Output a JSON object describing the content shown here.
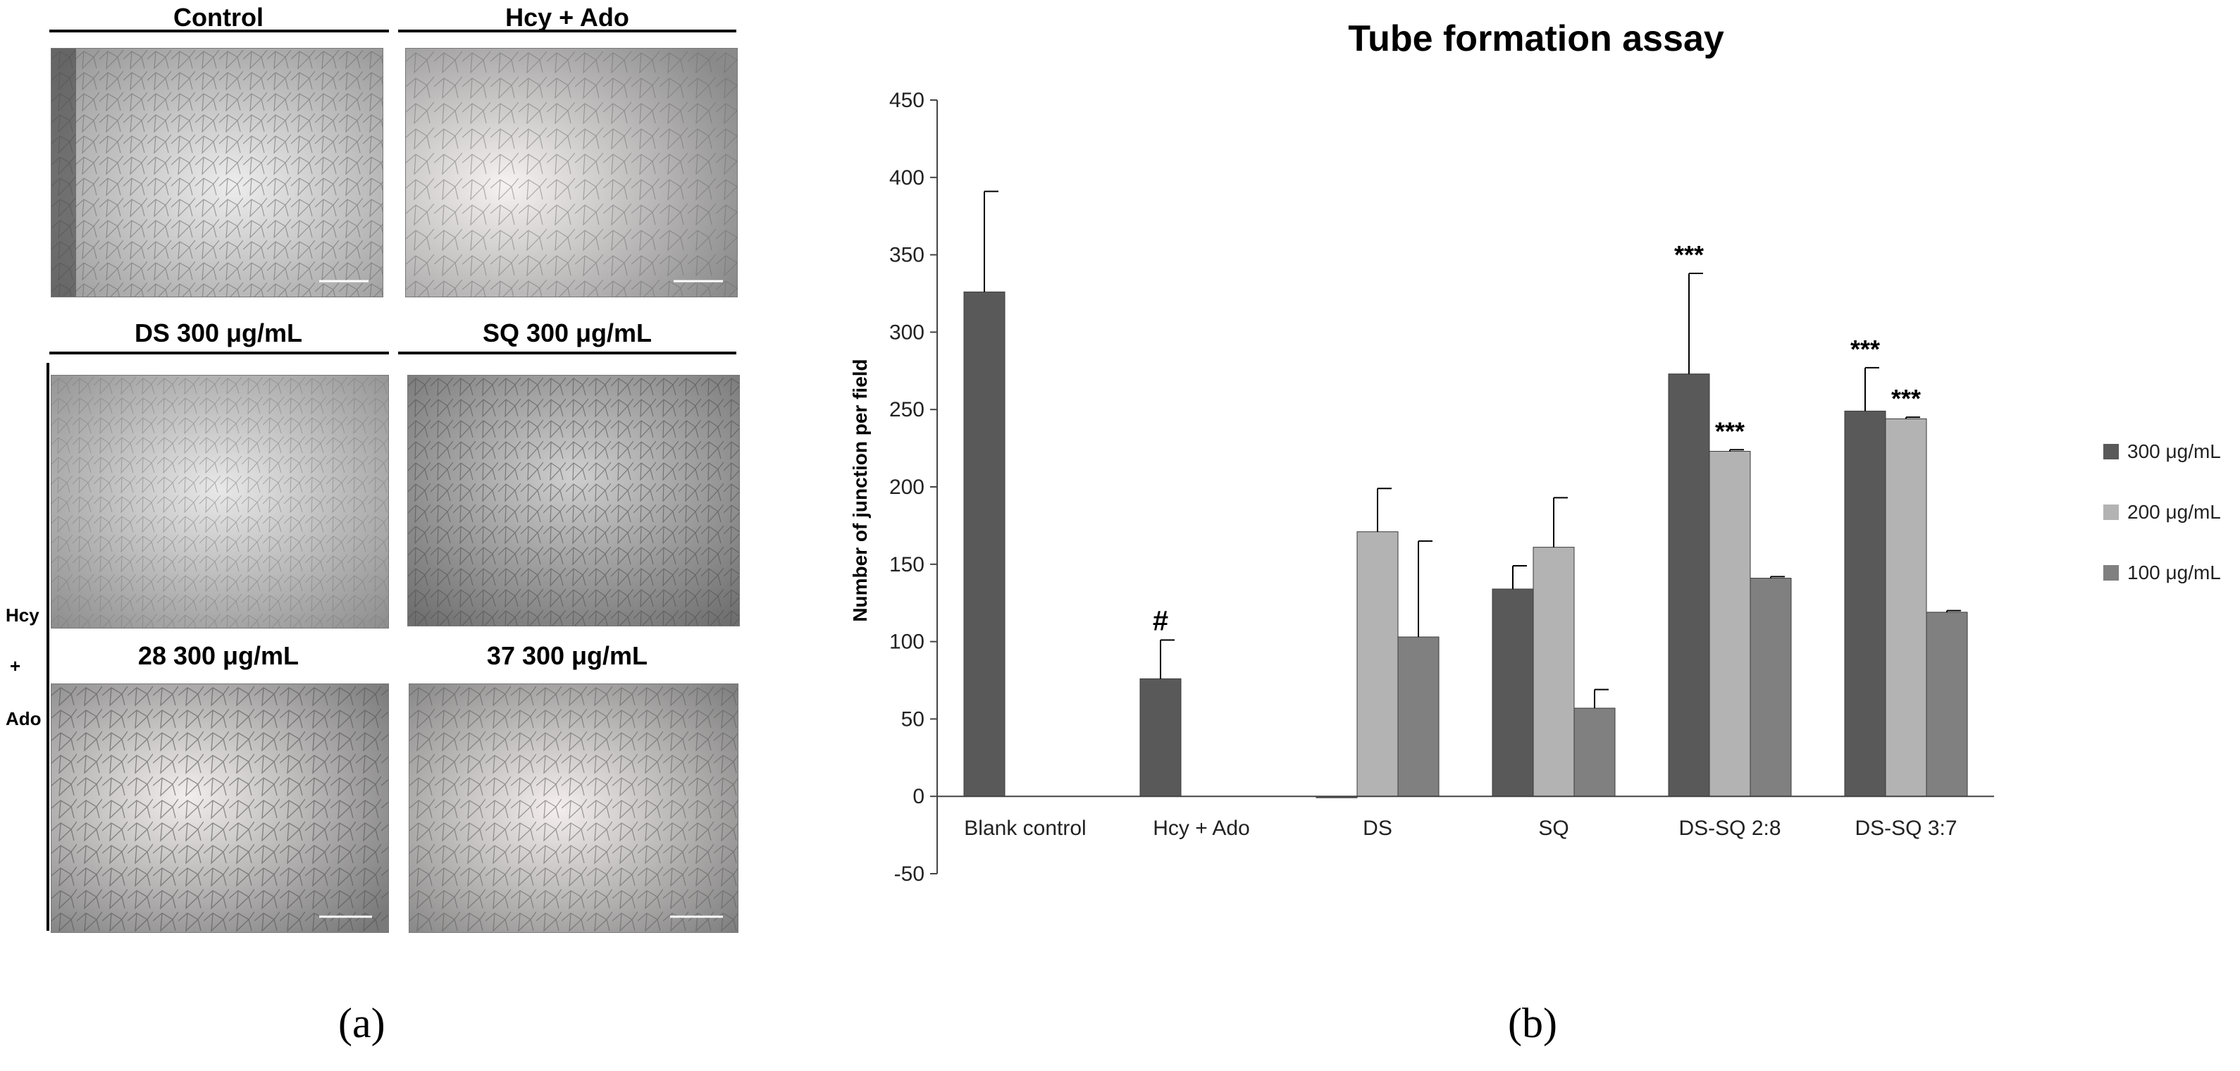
{
  "panel_a": {
    "images": [
      {
        "title": "Control"
      },
      {
        "title": "Hcy + Ado"
      },
      {
        "title": "DS 300 μg/mL"
      },
      {
        "title": "SQ 300 μg/mL"
      },
      {
        "title": "28 300 μg/mL"
      },
      {
        "title": "37 300 μg/mL"
      }
    ],
    "side_label": {
      "line1": "Hcy",
      "line2": "+",
      "line3": "Ado"
    },
    "caption": "(a)"
  },
  "panel_b": {
    "caption": "(b)"
  },
  "chart_data": {
    "type": "bar",
    "title": "Tube formation assay",
    "xlabel": "",
    "ylabel": "Number of junction per field",
    "ylim": [
      -50,
      450
    ],
    "yticks": [
      -50,
      0,
      50,
      100,
      150,
      200,
      250,
      300,
      350,
      400,
      450
    ],
    "categories": [
      "Blank control",
      "Hcy + Ado",
      "DS",
      "SQ",
      "DS-SQ 2:8",
      "DS-SQ 3:7"
    ],
    "legend_position": "right",
    "series": [
      {
        "name": "300 μg/mL",
        "color": "#595959",
        "values": [
          326,
          76,
          0,
          134,
          273,
          249
        ],
        "errors": [
          65,
          25,
          0,
          15,
          65,
          28
        ],
        "annotations": [
          "",
          "#",
          "",
          "",
          "***",
          "***"
        ]
      },
      {
        "name": "200 μg/mL",
        "color": "#b3b3b3",
        "values": [
          null,
          null,
          171,
          161,
          223,
          244
        ],
        "errors": [
          null,
          null,
          28,
          32,
          1,
          1
        ],
        "annotations": [
          "",
          "",
          "",
          "",
          "***",
          "***"
        ]
      },
      {
        "name": "100 μg/mL",
        "color": "#808080",
        "values": [
          null,
          null,
          103,
          57,
          141,
          119
        ],
        "errors": [
          null,
          null,
          62,
          12,
          1,
          1
        ],
        "annotations": [
          "",
          "",
          "",
          "",
          "",
          ""
        ]
      }
    ]
  }
}
